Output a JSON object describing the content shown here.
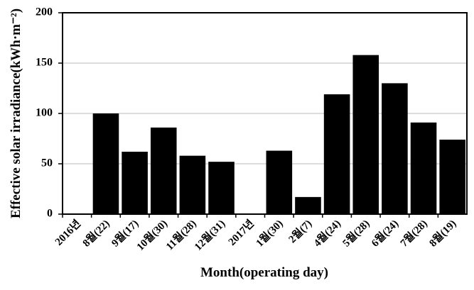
{
  "chart_data": {
    "type": "bar",
    "x_label": "Month(operating day)",
    "y_label": "Effective solar irradiance(kWh·m⁻²)",
    "categories": [
      "2016년",
      "8월(22)",
      "9월(17)",
      "10월(30)",
      "11월(28)",
      "12월(31)",
      "2017년",
      "1월(30)",
      "2월(7)",
      "4월(24)",
      "5월(28)",
      "6월(24)",
      "7월(28)",
      "8월(19)"
    ],
    "values": [
      null,
      100,
      62,
      86,
      58,
      52,
      null,
      63,
      17,
      119,
      158,
      130,
      91,
      74
    ],
    "color": "#000000",
    "ylim": [
      0,
      200
    ],
    "yticks": [
      0,
      50,
      100,
      150,
      200
    ],
    "grid": true
  }
}
